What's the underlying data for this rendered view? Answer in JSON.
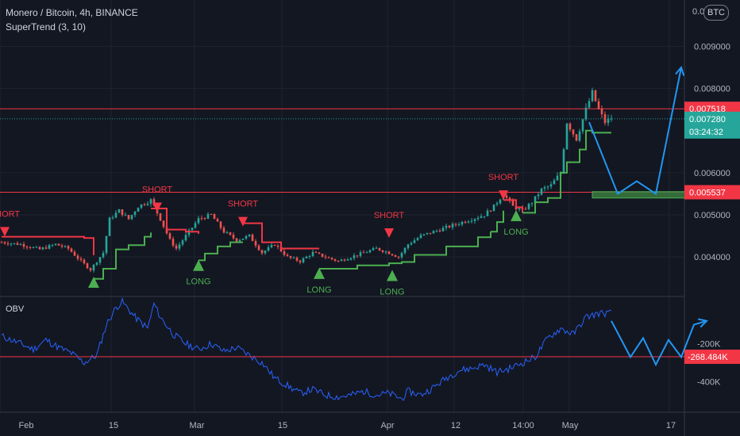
{
  "header": {
    "title": "Monero / Bitcoin, 4h, BINANCE",
    "indicator": "SuperTrend (3, 10)",
    "obv_label": "OBV",
    "currency_badge": "BTC",
    "currency_badge_prefix": "0.0"
  },
  "colors": {
    "background": "#131722",
    "up_candle": "#26a69a",
    "down_candle": "#ef5350",
    "supertrend_up": "#4caf50",
    "supertrend_down": "#f23645",
    "level_line": "#f23645",
    "obv_line": "#2962ff",
    "projection": "#2196f3",
    "target_box": "#3b7a3f"
  },
  "chart_data": [
    {
      "type": "candlestick",
      "title": "Monero / Bitcoin, 4h, BINANCE",
      "y_axis_ticks": [
        "0.009000",
        "0.008000",
        "0.006000",
        "0.005000",
        "0.004000"
      ],
      "x_axis_ticks": [
        "Feb",
        "15",
        "Mar",
        "15",
        "Apr",
        "12",
        "14:00",
        "May",
        "17"
      ],
      "ylim": [
        0.0031,
        0.0101
      ],
      "price_path": [
        [
          0,
          0.00435
        ],
        [
          6,
          0.0043
        ],
        [
          12,
          0.00418
        ],
        [
          17,
          0.0043
        ],
        [
          21,
          0.0042
        ],
        [
          25,
          0.0039
        ],
        [
          28,
          0.0037
        ],
        [
          32,
          0.0041
        ],
        [
          34,
          0.0049
        ],
        [
          37,
          0.0051
        ],
        [
          40,
          0.0049
        ],
        [
          43,
          0.0052
        ],
        [
          47,
          0.00535
        ],
        [
          50,
          0.0049
        ],
        [
          53,
          0.0044
        ],
        [
          55,
          0.0042
        ],
        [
          58,
          0.0045
        ],
        [
          62,
          0.0049
        ],
        [
          66,
          0.005
        ],
        [
          70,
          0.0046
        ],
        [
          74,
          0.0044
        ],
        [
          78,
          0.0045
        ],
        [
          82,
          0.0041
        ],
        [
          86,
          0.0043
        ],
        [
          90,
          0.004
        ],
        [
          94,
          0.0039
        ],
        [
          98,
          0.0041
        ],
        [
          102,
          0.004
        ],
        [
          106,
          0.0039
        ],
        [
          110,
          0.004
        ],
        [
          114,
          0.0041
        ],
        [
          118,
          0.0042
        ],
        [
          122,
          0.0041
        ],
        [
          125,
          0.004
        ],
        [
          128,
          0.0043
        ],
        [
          132,
          0.0045
        ],
        [
          136,
          0.0046
        ],
        [
          140,
          0.0047
        ],
        [
          144,
          0.0048
        ],
        [
          148,
          0.0049
        ],
        [
          152,
          0.005
        ],
        [
          155,
          0.0052
        ],
        [
          158,
          0.0055
        ],
        [
          161,
          0.0052
        ],
        [
          164,
          0.0051
        ],
        [
          167,
          0.0053
        ],
        [
          170,
          0.0056
        ],
        [
          173,
          0.0057
        ],
        [
          176,
          0.006
        ],
        [
          178,
          0.0072
        ],
        [
          181,
          0.0068
        ],
        [
          184,
          0.0075
        ],
        [
          186,
          0.0079
        ],
        [
          188,
          0.0075
        ],
        [
          190,
          0.0072
        ],
        [
          192,
          0.0073
        ]
      ],
      "candle_count": 193,
      "supertrend": [
        {
          "dir": "down",
          "points": [
            [
              0,
              0.00448
            ],
            [
              26,
              0.00445
            ],
            [
              29,
              0.00404
            ]
          ]
        },
        {
          "dir": "up",
          "points": [
            [
              29,
              0.00348
            ],
            [
              32,
              0.00372
            ],
            [
              36,
              0.00418
            ],
            [
              40,
              0.00428
            ],
            [
              45,
              0.00448
            ],
            [
              47,
              0.00458
            ]
          ]
        },
        {
          "dir": "down",
          "points": [
            [
              47,
              0.00515
            ],
            [
              52,
              0.00465
            ],
            [
              58,
              0.0046
            ],
            [
              62,
              0.00455
            ]
          ]
        },
        {
          "dir": "up",
          "points": [
            [
              62,
              0.00392
            ],
            [
              64,
              0.00408
            ],
            [
              68,
              0.00425
            ],
            [
              72,
              0.00435
            ],
            [
              76,
              0.00435
            ]
          ]
        },
        {
          "dir": "down",
          "points": [
            [
              76,
              0.0048
            ],
            [
              82,
              0.00435
            ],
            [
              88,
              0.0042
            ],
            [
              100,
              0.0042
            ]
          ]
        },
        {
          "dir": "up",
          "points": [
            [
              100,
              0.00372
            ],
            [
              112,
              0.0038
            ],
            [
              122,
              0.00385
            ],
            [
              126,
              0.00388
            ],
            [
              130,
              0.00405
            ],
            [
              140,
              0.00425
            ],
            [
              150,
              0.00447
            ],
            [
              154,
              0.0046
            ]
          ]
        },
        {
          "dir": "up",
          "points": [
            [
              154,
              0.0046
            ],
            [
              156,
              0.00483
            ],
            [
              158,
              0.0051
            ]
          ]
        },
        {
          "dir": "down",
          "points": [
            [
              158,
              0.00535
            ],
            [
              162,
              0.00518
            ],
            [
              164,
              0.00505
            ]
          ]
        },
        {
          "dir": "up",
          "points": [
            [
              164,
              0.00505
            ],
            [
              168,
              0.0053
            ],
            [
              172,
              0.0054
            ],
            [
              176,
              0.006
            ],
            [
              178,
              0.00625
            ],
            [
              182,
              0.00655
            ],
            [
              184,
              0.007
            ],
            [
              186,
              0.00695
            ],
            [
              192,
              0.00695
            ]
          ]
        }
      ],
      "signals": [
        {
          "type": "SHORT",
          "label": "SHORT",
          "x": 1,
          "y": 0.00458
        },
        {
          "type": "LONG",
          "label": "",
          "x": 29,
          "y": 0.00342
        },
        {
          "type": "SHORT",
          "label": "SHORT",
          "x": 49,
          "y": 0.00516
        },
        {
          "type": "LONG",
          "label": "LONG",
          "x": 62,
          "y": 0.00382
        },
        {
          "type": "SHORT",
          "label": "SHORT",
          "x": 76,
          "y": 0.00482
        },
        {
          "type": "LONG",
          "label": "LONG",
          "x": 100,
          "y": 0.00363
        },
        {
          "type": "SHORT",
          "label": "SHORT",
          "x": 122,
          "y": 0.00455
        },
        {
          "type": "LONG",
          "label": "LONG",
          "x": 123,
          "y": 0.00358
        },
        {
          "type": "SHORT",
          "label": "SHORT",
          "x": 158,
          "y": 0.00545
        },
        {
          "type": "LONG",
          "label": "LONG",
          "x": 162,
          "y": 0.005
        }
      ],
      "levels": [
        {
          "price": 0.007518,
          "label": "0.007518"
        },
        {
          "price": 0.005537,
          "label": "0.005537"
        }
      ],
      "last_price": {
        "price": 0.00728,
        "label": "0.007280",
        "countdown": "03:24:32"
      },
      "target_zone": {
        "x_start": 186,
        "x_end": 224,
        "y_low": 0.0054,
        "y_high": 0.00555
      },
      "projection": [
        [
          185,
          0.0072
        ],
        [
          194,
          0.0055
        ],
        [
          200,
          0.0058
        ],
        [
          206,
          0.0055
        ],
        [
          214,
          0.0085
        ]
      ]
    },
    {
      "type": "line",
      "title": "OBV",
      "series": [
        {
          "name": "OBV",
          "color": "#2962ff"
        }
      ],
      "y_axis_ticks": [
        "-200K",
        "-400K"
      ],
      "ylim": [
        -560,
        40
      ],
      "level": {
        "value": -268.484,
        "label": "-268.484K"
      },
      "obv_path": [
        [
          0,
          -160
        ],
        [
          6,
          -200
        ],
        [
          10,
          -230
        ],
        [
          14,
          -180
        ],
        [
          18,
          -220
        ],
        [
          22,
          -250
        ],
        [
          26,
          -300
        ],
        [
          30,
          -260
        ],
        [
          33,
          -100
        ],
        [
          36,
          -10
        ],
        [
          38,
          20
        ],
        [
          42,
          -60
        ],
        [
          46,
          -120
        ],
        [
          48,
          10
        ],
        [
          50,
          -60
        ],
        [
          54,
          -150
        ],
        [
          58,
          -200
        ],
        [
          62,
          -230
        ],
        [
          66,
          -200
        ],
        [
          70,
          -240
        ],
        [
          74,
          -220
        ],
        [
          78,
          -260
        ],
        [
          82,
          -300
        ],
        [
          86,
          -380
        ],
        [
          90,
          -420
        ],
        [
          94,
          -460
        ],
        [
          98,
          -440
        ],
        [
          102,
          -470
        ],
        [
          106,
          -480
        ],
        [
          110,
          -470
        ],
        [
          114,
          -450
        ],
        [
          118,
          -470
        ],
        [
          122,
          -460
        ],
        [
          126,
          -490
        ],
        [
          128,
          -450
        ],
        [
          132,
          -470
        ],
        [
          136,
          -430
        ],
        [
          140,
          -380
        ],
        [
          144,
          -340
        ],
        [
          148,
          -330
        ],
        [
          152,
          -310
        ],
        [
          156,
          -350
        ],
        [
          160,
          -330
        ],
        [
          164,
          -300
        ],
        [
          168,
          -270
        ],
        [
          172,
          -170
        ],
        [
          176,
          -120
        ],
        [
          180,
          -150
        ],
        [
          184,
          -60
        ],
        [
          188,
          -40
        ],
        [
          192,
          -40
        ]
      ],
      "projection": [
        [
          192,
          -80
        ],
        [
          198,
          -270
        ],
        [
          202,
          -170
        ],
        [
          206,
          -310
        ],
        [
          210,
          -180
        ],
        [
          214,
          -270
        ],
        [
          218,
          -100
        ],
        [
          222,
          -80
        ]
      ]
    }
  ]
}
